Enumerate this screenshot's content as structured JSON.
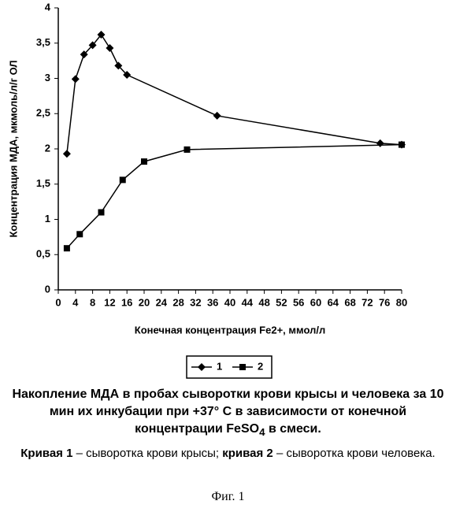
{
  "chart_data": {
    "type": "line",
    "ylabel": "Концентрация МДА, мкмоль/л/г ОЛ",
    "xlabel": "Конечная концентрация Fe2+, ммол/л",
    "xlim": [
      0,
      80
    ],
    "xticks": [
      0,
      4,
      8,
      12,
      16,
      20,
      24,
      28,
      32,
      36,
      40,
      44,
      48,
      52,
      56,
      60,
      64,
      68,
      72,
      76,
      80
    ],
    "ylim": [
      0,
      4
    ],
    "yticks": [
      0,
      {
        "value": 0.5,
        "label": "0,5"
      },
      1,
      {
        "value": 1.5,
        "label": "1,5"
      },
      2,
      {
        "value": 2.5,
        "label": "2,5"
      },
      3,
      {
        "value": 3.5,
        "label": "3,5"
      },
      4
    ],
    "grid": false,
    "series": [
      {
        "name": "1",
        "color": "#000000",
        "marker": "diamond",
        "x": [
          2,
          4,
          6,
          8,
          10,
          12,
          14,
          16,
          37,
          75,
          80
        ],
        "values": [
          1.93,
          2.99,
          3.34,
          3.47,
          3.62,
          3.43,
          3.18,
          3.05,
          2.47,
          2.08,
          2.06
        ]
      },
      {
        "name": "2",
        "color": "#000000",
        "marker": "square",
        "x": [
          2,
          5,
          10,
          15,
          20,
          30,
          80
        ],
        "values": [
          0.59,
          0.79,
          1.1,
          1.56,
          1.82,
          1.99,
          2.06
        ]
      }
    ]
  },
  "caption": {
    "text": "Накопление МДА в пробах сыворотки крови крысы и человека за 10 мин их инкубации при +37° С в зависимости от конечной концентрации FeSO",
    "subscript": "4",
    "tail": "в смеси."
  },
  "note": {
    "parts": [
      {
        "text": "Кривая 1",
        "bold": true
      },
      {
        "text": "– сыворотка крови крысы;",
        "bold": false
      },
      {
        "text": "кривая 2",
        "bold": true
      },
      {
        "text": "– сыворотка крови человека.",
        "bold": false
      }
    ]
  },
  "figure": "Фиг. 1"
}
